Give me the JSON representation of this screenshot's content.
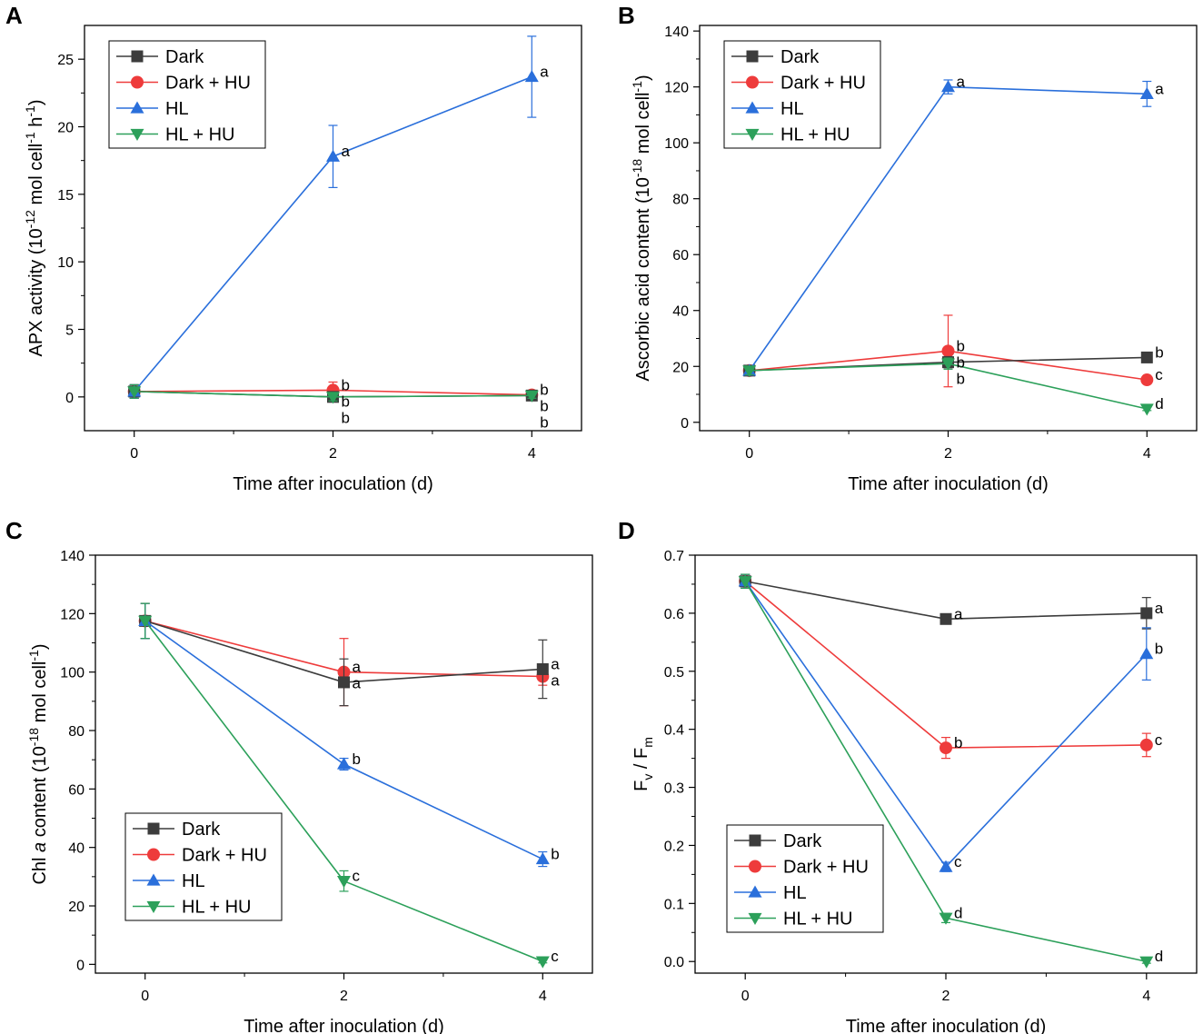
{
  "colors": {
    "Dark": "#3c3c3c",
    "Dark + HU": "#ee3b3b",
    "HL": "#2a6fdb",
    "HL + HU": "#2ca05a"
  },
  "markers": {
    "Dark": "square",
    "Dark + HU": "circle",
    "HL": "triangle-up",
    "HL + HU": "triangle-down"
  },
  "chart_data": [
    {
      "panel": "A",
      "type": "line",
      "title": "",
      "xlabel": "Time after inoculation (d)",
      "ylabel": {
        "pre": "APX activity (10",
        "s1": "-12",
        "mid": " mol cell",
        "s2": "-1",
        "mid2": " h",
        "s3": "-1",
        "post": ")"
      },
      "x": [
        0,
        2,
        4
      ],
      "xlim": [
        -0.5,
        4.5
      ],
      "ylim": [
        -2.5,
        27.5
      ],
      "xticks": [
        0,
        2,
        4
      ],
      "yticks": [
        0,
        5,
        10,
        15,
        20,
        25
      ],
      "legend": {
        "position": "top-left"
      },
      "series": [
        {
          "name": "Dark",
          "values": [
            0.4,
            0.0,
            0.1
          ],
          "err": [
            0.5,
            0.3,
            0.2
          ],
          "labels": [
            "",
            "b",
            "b"
          ]
        },
        {
          "name": "Dark + HU",
          "values": [
            0.4,
            0.5,
            0.15
          ],
          "err": [
            0.5,
            0.6,
            0.2
          ],
          "labels": [
            "",
            "b",
            "b"
          ]
        },
        {
          "name": "HL",
          "values": [
            0.4,
            17.8,
            23.7
          ],
          "err": [
            0.5,
            2.3,
            3.0
          ],
          "labels": [
            "",
            "a",
            "a"
          ]
        },
        {
          "name": "HL + HU",
          "values": [
            0.4,
            0.0,
            0.1
          ],
          "err": [
            0.5,
            0.3,
            0.2
          ],
          "labels": [
            "",
            "b",
            "b"
          ]
        }
      ]
    },
    {
      "panel": "B",
      "type": "line",
      "title": "",
      "xlabel": "Time after inoculation (d)",
      "ylabel": {
        "pre": "Ascorbic acid content (10",
        "s1": "-18",
        "mid": " mol cell",
        "s2": "-1",
        "post": ")"
      },
      "x": [
        0,
        2,
        4
      ],
      "xlim": [
        -0.5,
        4.5
      ],
      "ylim": [
        -3,
        142
      ],
      "xticks": [
        0,
        2,
        4
      ],
      "yticks": [
        0,
        20,
        40,
        60,
        80,
        100,
        120,
        140
      ],
      "legend": {
        "position": "top-left"
      },
      "series": [
        {
          "name": "Dark",
          "values": [
            18.5,
            21.5,
            23.2
          ],
          "err": [
            1.5,
            2.0,
            1.0
          ],
          "labels": [
            "",
            "b",
            "b"
          ]
        },
        {
          "name": "Dark + HU",
          "values": [
            18.5,
            25.5,
            15.2
          ],
          "err": [
            1.5,
            12.8,
            1.0
          ],
          "labels": [
            "",
            "b",
            "c"
          ]
        },
        {
          "name": "HL",
          "values": [
            18.5,
            120.0,
            117.5
          ],
          "err": [
            1.5,
            2.5,
            4.5
          ],
          "labels": [
            "",
            "a",
            "a"
          ]
        },
        {
          "name": "HL + HU",
          "values": [
            18.5,
            21.0,
            4.8
          ],
          "err": [
            1.5,
            2.0,
            0.6
          ],
          "labels": [
            "",
            "b",
            "d"
          ]
        }
      ]
    },
    {
      "panel": "C",
      "type": "line",
      "title": "",
      "xlabel": "Time after inoculation (d)",
      "ylabel": {
        "pre": "Chl ",
        "ital": "a",
        "pre2": " content (10",
        "s1": "-18",
        "mid": " mol cell",
        "s2": "-1",
        "post": ")"
      },
      "x": [
        0,
        2,
        4
      ],
      "xlim": [
        -0.5,
        4.5
      ],
      "ylim": [
        -3,
        140
      ],
      "xticks": [
        0,
        2,
        4
      ],
      "yticks": [
        0,
        20,
        40,
        60,
        80,
        100,
        120,
        140
      ],
      "legend": {
        "position": "bottom-left"
      },
      "series": [
        {
          "name": "Dark",
          "values": [
            117.5,
            96.5,
            101.0
          ],
          "err": [
            6.0,
            8.0,
            10.0
          ],
          "labels": [
            "",
            "a",
            "a"
          ]
        },
        {
          "name": "Dark + HU",
          "values": [
            117.5,
            100.0,
            98.5
          ],
          "err": [
            6.0,
            11.5,
            3.0
          ],
          "labels": [
            "",
            "a",
            "a"
          ]
        },
        {
          "name": "HL",
          "values": [
            117.5,
            68.5,
            36.0
          ],
          "err": [
            6.0,
            2.0,
            2.5
          ],
          "labels": [
            "",
            "b",
            "b"
          ]
        },
        {
          "name": "HL + HU",
          "values": [
            117.5,
            28.5,
            1.0
          ],
          "err": [
            6.0,
            3.5,
            0.5
          ],
          "labels": [
            "",
            "c",
            "c"
          ]
        }
      ]
    },
    {
      "panel": "D",
      "type": "line",
      "title": "",
      "xlabel": "Time after inoculation (d)",
      "ylabel": {
        "pre": "F",
        "sub1": "v",
        "mid": " / F",
        "sub2": "m"
      },
      "x": [
        0,
        2,
        4
      ],
      "xlim": [
        -0.5,
        4.5
      ],
      "ylim": [
        -0.02,
        0.7
      ],
      "xticks": [
        0,
        2,
        4
      ],
      "yticks": [
        0.0,
        0.1,
        0.2,
        0.3,
        0.4,
        0.5,
        0.6,
        0.7
      ],
      "legend": {
        "position": "bottom-left"
      },
      "series": [
        {
          "name": "Dark",
          "values": [
            0.655,
            0.59,
            0.6
          ],
          "err": [
            0.012,
            0.005,
            0.027
          ],
          "labels": [
            "",
            "a",
            "a"
          ]
        },
        {
          "name": "Dark + HU",
          "values": [
            0.655,
            0.368,
            0.373
          ],
          "err": [
            0.012,
            0.018,
            0.02
          ],
          "labels": [
            "",
            "b",
            "c"
          ]
        },
        {
          "name": "HL",
          "values": [
            0.655,
            0.163,
            0.53
          ],
          "err": [
            0.012,
            0.008,
            0.045
          ],
          "labels": [
            "",
            "c",
            "b"
          ]
        },
        {
          "name": "HL + HU",
          "values": [
            0.655,
            0.075,
            0.0
          ],
          "err": [
            0.012,
            0.008,
            0.003
          ],
          "labels": [
            "",
            "d",
            "d"
          ]
        }
      ]
    }
  ]
}
